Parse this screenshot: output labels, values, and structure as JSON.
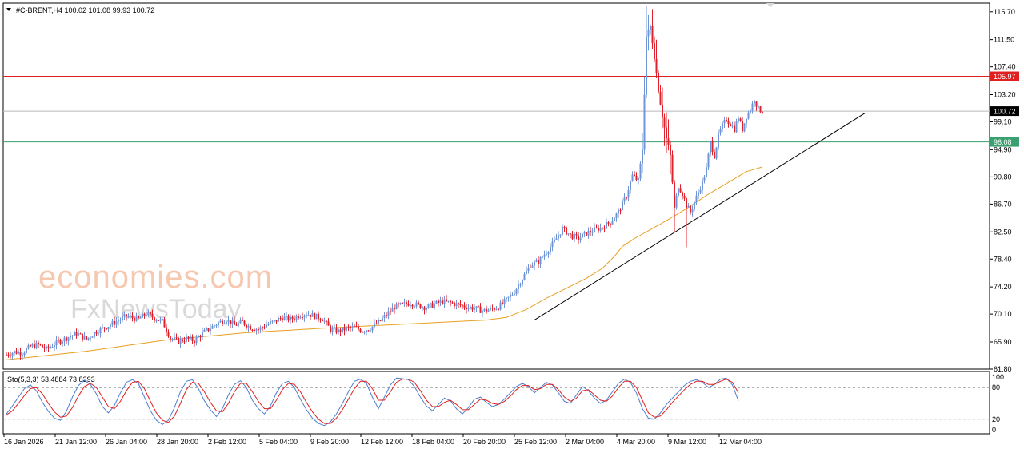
{
  "header": {
    "symbol_info": "#C-BRENT,H4  100.02 101.08 99.93 100.72"
  },
  "watermark": {
    "line1": "economies.com",
    "line2": "FxNewsToday"
  },
  "indicator": {
    "label": "Sto(5,3,3) 53.4884 73.8393",
    "levels": [
      "100",
      "80",
      "20",
      "0"
    ]
  },
  "colors": {
    "bull": "#6f95d6",
    "bear": "#e0202a",
    "ma": "#e8a020",
    "resistance": "#e02020",
    "support": "#3aa070",
    "trendline": "#000000",
    "stoch_main": "#4a7fd0",
    "stoch_signal": "#e02020"
  },
  "chart_data": {
    "type": "candlestick",
    "timeframe": "H4",
    "instrument": "#C-BRENT",
    "y_ticks": [
      "115.70",
      "111.50",
      "107.40",
      "103.20",
      "99.10",
      "94.90",
      "90.80",
      "86.70",
      "82.50",
      "78.40",
      "74.20",
      "70.10",
      "65.90",
      "61.80"
    ],
    "ylim": [
      61.8,
      117.0
    ],
    "x_ticks": [
      "16 Jan 2026",
      "21 Jan 12:00",
      "26 Jan 04:00",
      "28 Jan 20:00",
      "2 Feb 12:00",
      "5 Feb 04:00",
      "9 Feb 20:00",
      "12 Feb 12:00",
      "18 Feb 04:00",
      "20 Feb 20:00",
      "25 Feb 12:00",
      "2 Mar 04:00",
      "4 Mar 20:00",
      "9 Mar 12:00",
      "12 Mar 04:00"
    ],
    "levels": [
      {
        "name": "resistance",
        "value": 105.97,
        "label": "105.97"
      },
      {
        "name": "current",
        "value": 100.72,
        "label": "100.72"
      },
      {
        "name": "support",
        "value": 96.08,
        "label": "96.08"
      }
    ],
    "trendline": [
      [
        0.0,
        69.2
      ],
      [
        1.0,
        100.4
      ]
    ],
    "close_path": [
      [
        0,
        64.0
      ],
      [
        4,
        64.4
      ],
      [
        8,
        64.3
      ],
      [
        12,
        65.2
      ],
      [
        16,
        65.5
      ],
      [
        20,
        64.8
      ],
      [
        25,
        65.8
      ],
      [
        30,
        66.5
      ],
      [
        35,
        67.2
      ],
      [
        40,
        66.3
      ],
      [
        45,
        67.5
      ],
      [
        50,
        68.2
      ],
      [
        55,
        69.0
      ],
      [
        60,
        69.8
      ],
      [
        66,
        69.3
      ],
      [
        70,
        70.2
      ],
      [
        74,
        69.5
      ],
      [
        78,
        69.0
      ],
      [
        82,
        66.5
      ],
      [
        86,
        66.0
      ],
      [
        90,
        66.4
      ],
      [
        94,
        66.1
      ],
      [
        98,
        67.2
      ],
      [
        102,
        68.0
      ],
      [
        106,
        68.8
      ],
      [
        110,
        69.3
      ],
      [
        114,
        68.4
      ],
      [
        118,
        68.9
      ],
      [
        122,
        68.1
      ],
      [
        126,
        67.8
      ],
      [
        130,
        68.5
      ],
      [
        134,
        69.0
      ],
      [
        138,
        69.6
      ],
      [
        142,
        69.3
      ],
      [
        146,
        69.9
      ],
      [
        150,
        70.2
      ],
      [
        154,
        69.8
      ],
      [
        158,
        69.4
      ],
      [
        162,
        67.8
      ],
      [
        166,
        67.5
      ],
      [
        170,
        67.9
      ],
      [
        174,
        68.1
      ],
      [
        178,
        67.6
      ],
      [
        182,
        68.0
      ],
      [
        186,
        68.8
      ],
      [
        190,
        70.0
      ],
      [
        194,
        71.2
      ],
      [
        198,
        71.5
      ],
      [
        202,
        71.8
      ],
      [
        206,
        71.4
      ],
      [
        210,
        71.1
      ],
      [
        214,
        71.6
      ],
      [
        218,
        72.0
      ],
      [
        222,
        71.8
      ],
      [
        226,
        71.5
      ],
      [
        230,
        71.2
      ],
      [
        234,
        71.0
      ],
      [
        238,
        70.6
      ],
      [
        242,
        70.8
      ],
      [
        246,
        71.2
      ],
      [
        250,
        72.2
      ],
      [
        254,
        73.5
      ],
      [
        258,
        75.5
      ],
      [
        262,
        77.5
      ],
      [
        266,
        78.0
      ],
      [
        270,
        79.5
      ],
      [
        274,
        81.0
      ],
      [
        278,
        83.0
      ],
      [
        282,
        82.0
      ],
      [
        286,
        81.5
      ],
      [
        290,
        82.3
      ],
      [
        294,
        82.8
      ],
      [
        298,
        83.2
      ],
      [
        302,
        84.0
      ],
      [
        306,
        85.5
      ],
      [
        310,
        88.0
      ],
      [
        313,
        91.0
      ],
      [
        316,
        90.2
      ],
      [
        318,
        95.0
      ],
      [
        320,
        112.0
      ],
      [
        322,
        113.5
      ],
      [
        324,
        109.0
      ],
      [
        326,
        104.0
      ],
      [
        328,
        100.0
      ],
      [
        330,
        96.5
      ],
      [
        332,
        94.0
      ],
      [
        334,
        86.0
      ],
      [
        336,
        89.5
      ],
      [
        338,
        88.3
      ],
      [
        340,
        86.5
      ],
      [
        342,
        85.5
      ],
      [
        344,
        87.0
      ],
      [
        346,
        88.5
      ],
      [
        348,
        90.0
      ],
      [
        350,
        92.0
      ],
      [
        352,
        96.0
      ],
      [
        354,
        94.0
      ],
      [
        356,
        97.0
      ],
      [
        358,
        98.5
      ],
      [
        360,
        99.5
      ],
      [
        362,
        98.8
      ],
      [
        364,
        98.0
      ],
      [
        366,
        99.8
      ],
      [
        368,
        98.0
      ],
      [
        370,
        100.0
      ],
      [
        372,
        101.0
      ],
      [
        374,
        102.5
      ],
      [
        376,
        101.0
      ],
      [
        378,
        100.72
      ]
    ],
    "ma_path": [
      [
        0,
        63.2
      ],
      [
        40,
        64.5
      ],
      [
        80,
        66.2
      ],
      [
        120,
        67.3
      ],
      [
        160,
        68.0
      ],
      [
        200,
        68.6
      ],
      [
        240,
        69.2
      ],
      [
        250,
        69.6
      ],
      [
        260,
        70.8
      ],
      [
        270,
        72.5
      ],
      [
        280,
        74.0
      ],
      [
        290,
        75.5
      ],
      [
        298,
        77.0
      ],
      [
        304,
        78.8
      ],
      [
        308,
        80.3
      ],
      [
        314,
        81.5
      ],
      [
        320,
        82.5
      ],
      [
        330,
        84.2
      ],
      [
        340,
        86.0
      ],
      [
        350,
        88.0
      ],
      [
        360,
        89.8
      ],
      [
        370,
        91.6
      ],
      [
        378,
        92.3
      ]
    ],
    "stochastic": {
      "main": [
        [
          0,
          30
        ],
        [
          3,
          45
        ],
        [
          6,
          62
        ],
        [
          9,
          78
        ],
        [
          12,
          85
        ],
        [
          15,
          74
        ],
        [
          18,
          52
        ],
        [
          21,
          35
        ],
        [
          24,
          22
        ],
        [
          27,
          18
        ],
        [
          30,
          35
        ],
        [
          33,
          62
        ],
        [
          36,
          84
        ],
        [
          39,
          94
        ],
        [
          42,
          86
        ],
        [
          45,
          68
        ],
        [
          48,
          44
        ],
        [
          51,
          32
        ],
        [
          54,
          46
        ],
        [
          57,
          70
        ],
        [
          60,
          90
        ],
        [
          63,
          95
        ],
        [
          66,
          88
        ],
        [
          69,
          62
        ],
        [
          72,
          36
        ],
        [
          75,
          18
        ],
        [
          78,
          10
        ],
        [
          81,
          18
        ],
        [
          84,
          42
        ],
        [
          87,
          72
        ],
        [
          90,
          92
        ],
        [
          93,
          95
        ],
        [
          96,
          78
        ],
        [
          99,
          55
        ],
        [
          102,
          38
        ],
        [
          105,
          25
        ],
        [
          108,
          40
        ],
        [
          111,
          66
        ],
        [
          114,
          86
        ],
        [
          117,
          93
        ],
        [
          120,
          80
        ],
        [
          123,
          56
        ],
        [
          126,
          40
        ],
        [
          129,
          30
        ],
        [
          132,
          45
        ],
        [
          135,
          70
        ],
        [
          138,
          88
        ],
        [
          141,
          92
        ],
        [
          144,
          80
        ],
        [
          147,
          58
        ],
        [
          150,
          38
        ],
        [
          153,
          22
        ],
        [
          156,
          12
        ],
        [
          159,
          8
        ],
        [
          162,
          15
        ],
        [
          165,
          30
        ],
        [
          168,
          50
        ],
        [
          171,
          72
        ],
        [
          174,
          92
        ],
        [
          177,
          96
        ],
        [
          180,
          88
        ],
        [
          183,
          62
        ],
        [
          186,
          40
        ],
        [
          189,
          62
        ],
        [
          192,
          85
        ],
        [
          195,
          98
        ],
        [
          198,
          97
        ],
        [
          201,
          95
        ],
        [
          204,
          82
        ],
        [
          207,
          62
        ],
        [
          210,
          45
        ],
        [
          213,
          36
        ],
        [
          216,
          48
        ],
        [
          219,
          60
        ],
        [
          222,
          55
        ],
        [
          225,
          40
        ],
        [
          228,
          30
        ],
        [
          231,
          42
        ],
        [
          234,
          58
        ],
        [
          237,
          62
        ],
        [
          240,
          52
        ],
        [
          243,
          44
        ],
        [
          246,
          48
        ],
        [
          249,
          58
        ],
        [
          252,
          70
        ],
        [
          255,
          82
        ],
        [
          258,
          88
        ],
        [
          261,
          82
        ],
        [
          264,
          70
        ],
        [
          267,
          80
        ],
        [
          270,
          90
        ],
        [
          273,
          85
        ],
        [
          276,
          70
        ],
        [
          279,
          54
        ],
        [
          282,
          50
        ],
        [
          285,
          66
        ],
        [
          288,
          82
        ],
        [
          291,
          74
        ],
        [
          294,
          60
        ],
        [
          297,
          50
        ],
        [
          300,
          56
        ],
        [
          303,
          72
        ],
        [
          306,
          88
        ],
        [
          309,
          96
        ],
        [
          312,
          90
        ],
        [
          315,
          70
        ],
        [
          318,
          40
        ],
        [
          321,
          22
        ],
        [
          324,
          20
        ],
        [
          327,
          32
        ],
        [
          330,
          48
        ],
        [
          333,
          60
        ],
        [
          336,
          72
        ],
        [
          339,
          84
        ],
        [
          342,
          92
        ],
        [
          345,
          95
        ],
        [
          348,
          90
        ],
        [
          351,
          80
        ],
        [
          354,
          86
        ],
        [
          357,
          96
        ],
        [
          360,
          98
        ],
        [
          363,
          85
        ],
        [
          366,
          55
        ]
      ],
      "signal": [
        [
          0,
          28
        ],
        [
          3,
          36
        ],
        [
          6,
          50
        ],
        [
          9,
          65
        ],
        [
          12,
          78
        ],
        [
          15,
          80
        ],
        [
          18,
          68
        ],
        [
          21,
          50
        ],
        [
          24,
          34
        ],
        [
          27,
          24
        ],
        [
          30,
          26
        ],
        [
          33,
          42
        ],
        [
          36,
          64
        ],
        [
          39,
          82
        ],
        [
          42,
          88
        ],
        [
          45,
          80
        ],
        [
          48,
          62
        ],
        [
          51,
          44
        ],
        [
          54,
          40
        ],
        [
          57,
          54
        ],
        [
          60,
          74
        ],
        [
          63,
          90
        ],
        [
          66,
          92
        ],
        [
          69,
          78
        ],
        [
          72,
          54
        ],
        [
          75,
          32
        ],
        [
          78,
          18
        ],
        [
          81,
          14
        ],
        [
          84,
          26
        ],
        [
          87,
          50
        ],
        [
          90,
          76
        ],
        [
          93,
          90
        ],
        [
          96,
          88
        ],
        [
          99,
          72
        ],
        [
          102,
          52
        ],
        [
          105,
          36
        ],
        [
          108,
          34
        ],
        [
          111,
          50
        ],
        [
          114,
          72
        ],
        [
          117,
          88
        ],
        [
          120,
          88
        ],
        [
          123,
          72
        ],
        [
          126,
          54
        ],
        [
          129,
          40
        ],
        [
          132,
          40
        ],
        [
          135,
          56
        ],
        [
          138,
          76
        ],
        [
          141,
          88
        ],
        [
          144,
          86
        ],
        [
          147,
          72
        ],
        [
          150,
          52
        ],
        [
          153,
          34
        ],
        [
          156,
          20
        ],
        [
          159,
          12
        ],
        [
          162,
          12
        ],
        [
          165,
          22
        ],
        [
          168,
          38
        ],
        [
          171,
          58
        ],
        [
          174,
          78
        ],
        [
          177,
          92
        ],
        [
          180,
          92
        ],
        [
          183,
          78
        ],
        [
          186,
          56
        ],
        [
          189,
          56
        ],
        [
          192,
          72
        ],
        [
          195,
          90
        ],
        [
          198,
          96
        ],
        [
          201,
          96
        ],
        [
          204,
          90
        ],
        [
          207,
          74
        ],
        [
          210,
          56
        ],
        [
          213,
          44
        ],
        [
          216,
          44
        ],
        [
          219,
          52
        ],
        [
          222,
          56
        ],
        [
          225,
          48
        ],
        [
          228,
          38
        ],
        [
          231,
          38
        ],
        [
          234,
          48
        ],
        [
          237,
          58
        ],
        [
          240,
          56
        ],
        [
          243,
          50
        ],
        [
          246,
          48
        ],
        [
          249,
          54
        ],
        [
          252,
          64
        ],
        [
          255,
          76
        ],
        [
          258,
          84
        ],
        [
          261,
          84
        ],
        [
          264,
          76
        ],
        [
          267,
          78
        ],
        [
          270,
          86
        ],
        [
          273,
          86
        ],
        [
          276,
          76
        ],
        [
          279,
          62
        ],
        [
          282,
          54
        ],
        [
          285,
          60
        ],
        [
          288,
          74
        ],
        [
          291,
          76
        ],
        [
          294,
          66
        ],
        [
          297,
          56
        ],
        [
          300,
          54
        ],
        [
          303,
          64
        ],
        [
          306,
          80
        ],
        [
          309,
          92
        ],
        [
          312,
          92
        ],
        [
          315,
          80
        ],
        [
          318,
          56
        ],
        [
          321,
          32
        ],
        [
          324,
          24
        ],
        [
          327,
          26
        ],
        [
          330,
          38
        ],
        [
          333,
          52
        ],
        [
          336,
          64
        ],
        [
          339,
          76
        ],
        [
          342,
          86
        ],
        [
          345,
          92
        ],
        [
          348,
          92
        ],
        [
          351,
          86
        ],
        [
          354,
          86
        ],
        [
          357,
          92
        ],
        [
          360,
          96
        ],
        [
          363,
          90
        ],
        [
          366,
          70
        ]
      ]
    }
  }
}
